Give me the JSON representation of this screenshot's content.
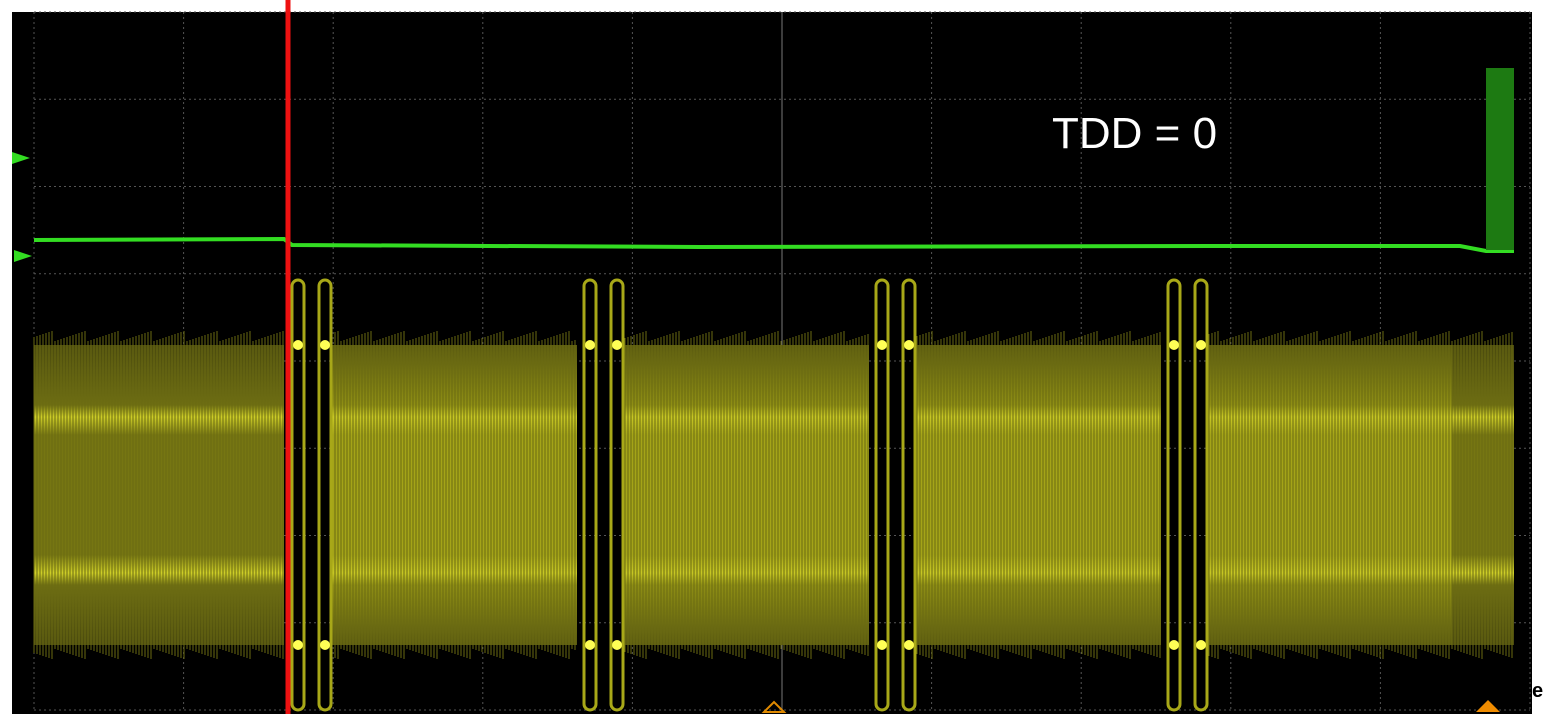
{
  "annotation": "TDD = 0",
  "corner_label": "e"
}
